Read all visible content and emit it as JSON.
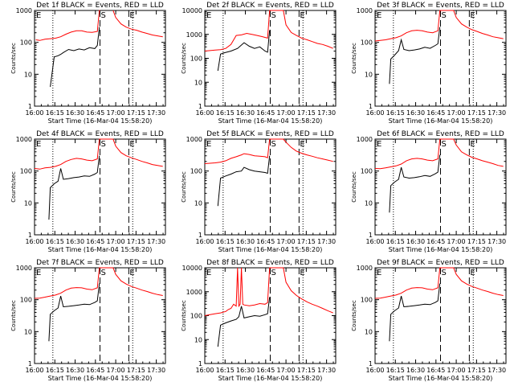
{
  "figure": {
    "background": "#ffffff",
    "events_color": "#000000",
    "lld_color": "#ff0000"
  },
  "chart_data": [
    {
      "type": "line",
      "title": "Det 1f BLACK = Events, RED = LLD",
      "xlabel": "Start Time (16-Mar-04 15:58:20)",
      "ylabel": "Counts/sec",
      "xlim": [
        0,
        100
      ],
      "ylim": [
        1,
        1000
      ],
      "yscale": "log",
      "xticks": [
        "16:00",
        "16:15",
        "16:30",
        "16:45",
        "17:00",
        "17:15",
        "17:30"
      ],
      "yticks": [
        "1",
        "10",
        "100",
        "1000"
      ],
      "markers": {
        "E": "E",
        "S": "S",
        "E2": "E"
      },
      "series": [
        {
          "name": "Events",
          "x": [
            1,
            3,
            4,
            5,
            6,
            7,
            8,
            10,
            12,
            15,
            18,
            20,
            22,
            26,
            30,
            34,
            38,
            42,
            46,
            48,
            49.5
          ],
          "y": [
            null,
            null,
            null,
            null,
            null,
            null,
            null,
            null,
            4,
            35,
            38,
            42,
            48,
            60,
            55,
            62,
            58,
            68,
            64,
            80,
            300
          ]
        },
        {
          "name": "LLD",
          "x": [
            1,
            4,
            8,
            12,
            16,
            20,
            24,
            28,
            32,
            36,
            40,
            44,
            48,
            49.5,
            50,
            51,
            59,
            60,
            62,
            66,
            70,
            74,
            78,
            82,
            86,
            90,
            94,
            98
          ],
          "y": [
            120,
            115,
            125,
            130,
            135,
            150,
            180,
            210,
            230,
            230,
            210,
            205,
            220,
            1000,
            1000,
            null,
            null,
            1000,
            600,
            380,
            300,
            260,
            240,
            210,
            190,
            170,
            160,
            150
          ]
        }
      ]
    },
    {
      "type": "line",
      "title": "Det 2f BLACK = Events, RED = LLD",
      "xlabel": "Start Time (16-Mar-04 15:58:20)",
      "ylabel": "Counts/sec",
      "xlim": [
        0,
        100
      ],
      "ylim": [
        1,
        10000
      ],
      "yscale": "log",
      "xticks": [
        "16:00",
        "16:15",
        "16:30",
        "16:45",
        "17:00",
        "17:15",
        "17:30"
      ],
      "yticks": [
        "1",
        "10",
        "100",
        "1000",
        "10000"
      ],
      "markers": {
        "E": "E",
        "S": "S",
        "E2": "E"
      },
      "series": [
        {
          "name": "Events",
          "x": [
            10,
            12,
            15,
            20,
            25,
            30,
            34,
            38,
            42,
            46,
            48,
            49.5
          ],
          "y": [
            30,
            150,
            170,
            200,
            260,
            450,
            320,
            260,
            300,
            200,
            180,
            1500
          ]
        },
        {
          "name": "LLD",
          "x": [
            0,
            4,
            8,
            12,
            16,
            20,
            24,
            28,
            32,
            36,
            40,
            44,
            48,
            49.5,
            50,
            60,
            62,
            66,
            70,
            74,
            78,
            82,
            86,
            90,
            94,
            98
          ],
          "y": [
            200,
            210,
            220,
            230,
            260,
            380,
            900,
            950,
            1100,
            1000,
            900,
            800,
            700,
            10000,
            10000,
            10000,
            2500,
            1200,
            900,
            700,
            600,
            500,
            420,
            380,
            320,
            260
          ]
        }
      ]
    },
    {
      "type": "line",
      "title": "Det 3f BLACK = Events, RED = LLD",
      "xlabel": "Start Time (16-Mar-04 15:58:20)",
      "ylabel": "Counts/sec",
      "xlim": [
        0,
        100
      ],
      "ylim": [
        1,
        1000
      ],
      "yscale": "log",
      "xticks": [
        "16:00",
        "16:15",
        "16:30",
        "16:45",
        "17:00",
        "17:15",
        "17:30"
      ],
      "yticks": [
        "1",
        "10",
        "100",
        "1000"
      ],
      "markers": {
        "E": "E",
        "S": "S",
        "E2": "E"
      },
      "series": [
        {
          "name": "Events",
          "x": [
            11,
            12,
            15,
            18,
            20,
            22,
            26,
            30,
            34,
            38,
            42,
            46,
            48,
            49.5
          ],
          "y": [
            5,
            30,
            40,
            55,
            120,
            60,
            55,
            58,
            62,
            70,
            65,
            80,
            90,
            300
          ]
        },
        {
          "name": "LLD",
          "x": [
            0,
            4,
            8,
            12,
            16,
            20,
            24,
            28,
            32,
            36,
            40,
            44,
            48,
            49.5,
            50,
            60,
            62,
            66,
            70,
            74,
            78,
            82,
            86,
            90,
            94,
            98
          ],
          "y": [
            110,
            115,
            120,
            130,
            140,
            160,
            200,
            230,
            240,
            230,
            210,
            200,
            230,
            1000,
            1000,
            1000,
            600,
            380,
            300,
            250,
            220,
            190,
            170,
            150,
            140,
            130
          ]
        }
      ]
    },
    {
      "type": "line",
      "title": "Det 4f BLACK = Events, RED = LLD",
      "xlabel": "Start Time (16-Mar-04 15:58:20)",
      "ylabel": "Counts/sec",
      "xlim": [
        0,
        100
      ],
      "ylim": [
        1,
        1000
      ],
      "yscale": "log",
      "xticks": [
        "16:00",
        "16:15",
        "16:30",
        "16:45",
        "17:00",
        "17:15",
        "17:30"
      ],
      "yticks": [
        "1",
        "10",
        "100",
        "1000"
      ],
      "markers": {
        "E": "E",
        "S": "S",
        "E2": "E"
      },
      "series": [
        {
          "name": "Events",
          "x": [
            11,
            12,
            15,
            18,
            20,
            22,
            26,
            30,
            34,
            38,
            42,
            46,
            48,
            49.5
          ],
          "y": [
            3,
            30,
            40,
            48,
            120,
            55,
            58,
            62,
            65,
            70,
            68,
            80,
            90,
            300
          ]
        },
        {
          "name": "LLD",
          "x": [
            0,
            4,
            8,
            12,
            16,
            20,
            24,
            28,
            32,
            36,
            40,
            44,
            48,
            49.5,
            50,
            60,
            62,
            66,
            70,
            74,
            78,
            82,
            86,
            90,
            94,
            98
          ],
          "y": [
            120,
            115,
            125,
            130,
            140,
            160,
            200,
            230,
            250,
            240,
            220,
            210,
            240,
            1000,
            1000,
            1000,
            600,
            380,
            300,
            260,
            230,
            200,
            180,
            160,
            150,
            140
          ]
        }
      ]
    },
    {
      "type": "line",
      "title": "Det 5f BLACK = Events, RED = LLD",
      "xlabel": "Start Time (16-Mar-04 15:58:20)",
      "ylabel": "Counts/sec",
      "xlim": [
        0,
        100
      ],
      "ylim": [
        1,
        1000
      ],
      "yscale": "log",
      "xticks": [
        "16:00",
        "16:15",
        "16:30",
        "16:45",
        "17:00",
        "17:15",
        "17:30"
      ],
      "yticks": [
        "1",
        "10",
        "100",
        "1000"
      ],
      "markers": {
        "E": "E",
        "S": "S",
        "E2": "E"
      },
      "series": [
        {
          "name": "Events",
          "x": [
            10,
            12,
            16,
            20,
            24,
            28,
            30,
            34,
            38,
            42,
            46,
            48,
            49.5
          ],
          "y": [
            8,
            60,
            70,
            80,
            95,
            100,
            130,
            110,
            100,
            95,
            90,
            85,
            300
          ]
        },
        {
          "name": "LLD",
          "x": [
            0,
            4,
            8,
            12,
            16,
            20,
            24,
            28,
            30,
            34,
            38,
            42,
            46,
            48,
            49.5,
            50,
            60,
            62,
            66,
            70,
            74,
            78,
            82,
            86,
            90,
            94,
            98
          ],
          "y": [
            170,
            175,
            180,
            190,
            210,
            250,
            280,
            320,
            350,
            330,
            300,
            290,
            280,
            260,
            1000,
            1000,
            1000,
            800,
            550,
            420,
            360,
            320,
            290,
            260,
            240,
            220,
            200
          ]
        }
      ]
    },
    {
      "type": "line",
      "title": "Det 6f BLACK = Events, RED = LLD",
      "xlabel": "Start Time (16-Mar-04 15:58:20)",
      "ylabel": "Counts/sec",
      "xlim": [
        0,
        100
      ],
      "ylim": [
        1,
        1000
      ],
      "yscale": "log",
      "xticks": [
        "16:00",
        "16:15",
        "16:30",
        "16:45",
        "17:00",
        "17:15",
        "17:30"
      ],
      "yticks": [
        "1",
        "10",
        "100",
        "1000"
      ],
      "markers": {
        "E": "E",
        "S": "S",
        "E2": "E"
      },
      "series": [
        {
          "name": "Events",
          "x": [
            11,
            12,
            15,
            18,
            20,
            22,
            26,
            30,
            34,
            38,
            42,
            46,
            48,
            49.5
          ],
          "y": [
            5,
            35,
            45,
            55,
            130,
            65,
            60,
            62,
            66,
            72,
            68,
            82,
            92,
            320
          ]
        },
        {
          "name": "LLD",
          "x": [
            0,
            4,
            8,
            12,
            16,
            20,
            24,
            28,
            32,
            36,
            40,
            44,
            48,
            49.5,
            50,
            60,
            62,
            66,
            70,
            74,
            78,
            82,
            86,
            90,
            94,
            98
          ],
          "y": [
            120,
            118,
            125,
            135,
            145,
            165,
            210,
            240,
            250,
            240,
            220,
            210,
            240,
            1000,
            1000,
            1000,
            650,
            400,
            320,
            270,
            240,
            210,
            190,
            170,
            150,
            140
          ]
        }
      ]
    },
    {
      "type": "line",
      "title": "Det 7f BLACK = Events, RED = LLD",
      "xlabel": "Start Time (16-Mar-04 15:58:20)",
      "ylabel": "Counts/sec",
      "xlim": [
        0,
        100
      ],
      "ylim": [
        1,
        1000
      ],
      "yscale": "log",
      "xticks": [
        "16:00",
        "16:15",
        "16:30",
        "16:45",
        "17:00",
        "17:15",
        "17:30"
      ],
      "yticks": [
        "1",
        "10",
        "100",
        "1000"
      ],
      "markers": {
        "E": "E",
        "S": "S",
        "E2": "E"
      },
      "series": [
        {
          "name": "Events",
          "x": [
            11,
            12,
            15,
            18,
            20,
            22,
            26,
            30,
            34,
            38,
            42,
            46,
            48,
            49.5
          ],
          "y": [
            5,
            35,
            45,
            55,
            130,
            60,
            62,
            65,
            68,
            72,
            70,
            82,
            92,
            320
          ]
        },
        {
          "name": "LLD",
          "x": [
            0,
            4,
            8,
            12,
            16,
            20,
            24,
            28,
            32,
            36,
            40,
            44,
            48,
            49.5,
            50,
            60,
            62,
            66,
            70,
            74,
            78,
            82,
            86,
            90,
            94,
            98
          ],
          "y": [
            110,
            112,
            120,
            130,
            140,
            160,
            200,
            230,
            240,
            235,
            215,
            205,
            235,
            1000,
            1000,
            1000,
            620,
            390,
            310,
            260,
            230,
            200,
            180,
            160,
            145,
            135
          ]
        }
      ]
    },
    {
      "type": "line",
      "title": "Det 8f BLACK = Events, RED = LLD",
      "xlabel": "Start Time (16-Mar-04 15:58:20)",
      "ylabel": "Counts/sec",
      "xlim": [
        0,
        100
      ],
      "ylim": [
        1,
        10000
      ],
      "yscale": "log",
      "xticks": [
        "16:00",
        "16:15",
        "16:30",
        "16:45",
        "17:00",
        "17:15",
        "17:30"
      ],
      "yticks": [
        "1",
        "10",
        "100",
        "1000",
        "10000"
      ],
      "markers": {
        "E": "E",
        "S": "S",
        "E2": "E"
      },
      "series": [
        {
          "name": "Events",
          "x": [
            10,
            12,
            16,
            20,
            24,
            26,
            28,
            30,
            34,
            38,
            42,
            46,
            48,
            49.5
          ],
          "y": [
            5,
            40,
            50,
            60,
            70,
            90,
            250,
            80,
            90,
            100,
            95,
            110,
            120,
            600
          ]
        },
        {
          "name": "LLD",
          "x": [
            0,
            4,
            8,
            12,
            16,
            18,
            20,
            22,
            24,
            25,
            26,
            27,
            28,
            29,
            30,
            34,
            38,
            42,
            46,
            48,
            49.5,
            50,
            60,
            62,
            66,
            70,
            74,
            78,
            82,
            86,
            90,
            94,
            98
          ],
          "y": [
            100,
            110,
            120,
            130,
            150,
            180,
            200,
            300,
            250,
            10000,
            250,
            300,
            10000,
            300,
            280,
            260,
            280,
            320,
            300,
            350,
            10000,
            10000,
            10000,
            2500,
            1100,
            700,
            500,
            380,
            300,
            250,
            200,
            160,
            130
          ]
        }
      ]
    },
    {
      "type": "line",
      "title": "Det 9f BLACK = Events, RED = LLD",
      "xlabel": "Start Time (16-Mar-04 15:58:20)",
      "ylabel": "Counts/sec",
      "xlim": [
        0,
        100
      ],
      "ylim": [
        1,
        1000
      ],
      "yscale": "log",
      "xticks": [
        "16:00",
        "16:15",
        "16:30",
        "16:45",
        "17:00",
        "17:15",
        "17:30"
      ],
      "yticks": [
        "1",
        "10",
        "100",
        "1000"
      ],
      "markers": {
        "E": "E",
        "S": "S",
        "E2": "E"
      },
      "series": [
        {
          "name": "Events",
          "x": [
            11,
            12,
            15,
            18,
            20,
            22,
            26,
            30,
            34,
            38,
            42,
            46,
            48,
            49.5
          ],
          "y": [
            5,
            35,
            45,
            55,
            130,
            60,
            62,
            65,
            68,
            72,
            70,
            82,
            92,
            320
          ]
        },
        {
          "name": "LLD",
          "x": [
            0,
            4,
            8,
            12,
            16,
            20,
            24,
            28,
            32,
            36,
            40,
            44,
            48,
            49.5,
            50,
            60,
            62,
            66,
            70,
            74,
            78,
            82,
            86,
            90,
            94,
            98
          ],
          "y": [
            110,
            112,
            120,
            130,
            140,
            160,
            200,
            230,
            240,
            235,
            215,
            205,
            235,
            1000,
            1000,
            1000,
            620,
            390,
            310,
            260,
            230,
            200,
            180,
            160,
            145,
            135
          ]
        }
      ]
    }
  ]
}
